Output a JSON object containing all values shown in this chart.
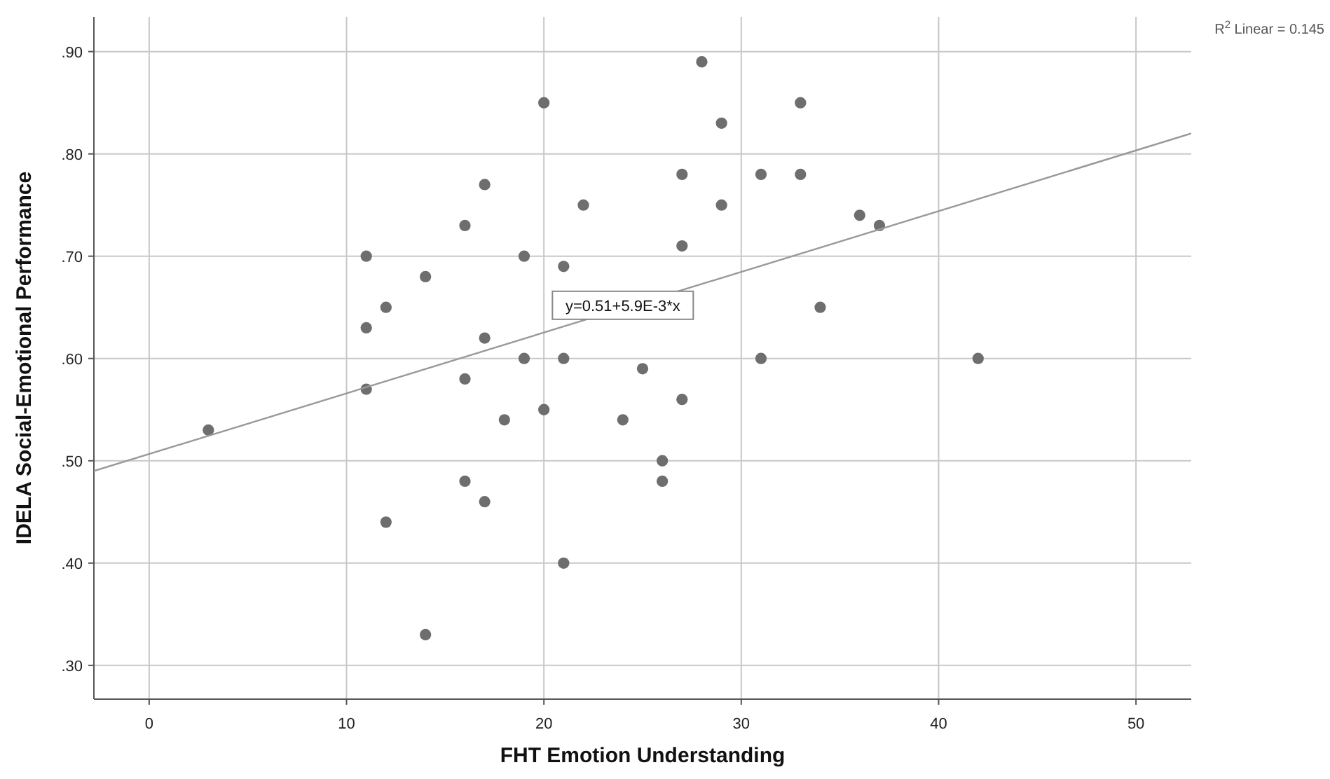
{
  "chart_data": {
    "type": "scatter",
    "xlabel": "FHT Emotion Understanding",
    "ylabel": "IDELA Social-Emotional Performance",
    "xlim": [
      -2.8,
      52.8
    ],
    "ylim": [
      0.267,
      0.934
    ],
    "xticks": [
      0,
      10,
      20,
      30,
      40,
      50
    ],
    "yticks": [
      {
        "value": 0.3,
        "label": ".30"
      },
      {
        "value": 0.4,
        "label": ".40"
      },
      {
        "value": 0.5,
        "label": ".50"
      },
      {
        "value": 0.6,
        "label": ".60"
      },
      {
        "value": 0.7,
        "label": ".70"
      },
      {
        "value": 0.8,
        "label": ".80"
      },
      {
        "value": 0.9,
        "label": ".90"
      }
    ],
    "grid": true,
    "series": [
      {
        "marker": "circle",
        "color": "#6e6e6e",
        "x": [
          3,
          11,
          11,
          11,
          12,
          12,
          14,
          14,
          16,
          16,
          16,
          17,
          17,
          17,
          18,
          19,
          19,
          20,
          20,
          21,
          21,
          21,
          22,
          24,
          25,
          26,
          26,
          27,
          27,
          27,
          28,
          29,
          29,
          31,
          31,
          33,
          33,
          34,
          36,
          37,
          42
        ],
        "values": [
          0.53,
          0.7,
          0.63,
          0.57,
          0.65,
          0.44,
          0.68,
          0.33,
          0.73,
          0.58,
          0.48,
          0.77,
          0.62,
          0.46,
          0.54,
          0.7,
          0.6,
          0.85,
          0.55,
          0.69,
          0.6,
          0.4,
          0.75,
          0.54,
          0.59,
          0.5,
          0.48,
          0.78,
          0.71,
          0.56,
          0.89,
          0.83,
          0.75,
          0.78,
          0.6,
          0.85,
          0.78,
          0.65,
          0.74,
          0.73,
          0.6
        ]
      },
      {
        "type": "line",
        "color": "#999999",
        "x": [
          -2.8,
          52.8
        ],
        "values": [
          0.49,
          0.82
        ]
      }
    ],
    "annotations": [
      {
        "text": "y=0.51+5.9E-3*x",
        "x": 24,
        "y": 0.652
      },
      "R$^{2}$ Linear = 0.145"
    ]
  }
}
